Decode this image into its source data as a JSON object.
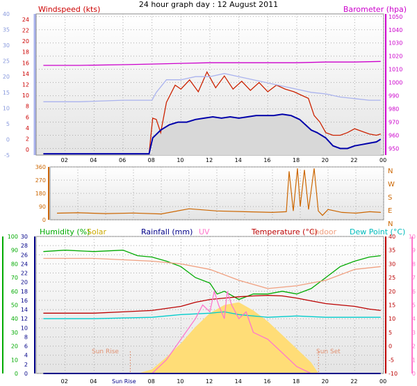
{
  "title": "24 hour graph day : 12 August 2011",
  "time_ticks": [
    "02",
    "04",
    "06",
    "08",
    "10",
    "12",
    "14",
    "16",
    "18",
    "20",
    "22",
    "00"
  ],
  "chart_data": [
    {
      "type": "line",
      "name": "wind-baro",
      "labels": {
        "windspeed": "Windspeed (kts)",
        "barometer": "Barometer (hpa)"
      },
      "y_left": {
        "range": [
          -1,
          25
        ],
        "ticks": [
          "0",
          "2",
          "4",
          "6",
          "8",
          "10",
          "12",
          "14",
          "16",
          "18",
          "20",
          "22",
          "24"
        ]
      },
      "y_left_outer": {
        "range": [
          -5,
          40
        ],
        "ticks": [
          "-5",
          "0",
          "5",
          "10",
          "15",
          "20",
          "25",
          "30",
          "35",
          "40"
        ]
      },
      "y_right": {
        "range": [
          945,
          1052
        ],
        "ticks": [
          "950",
          "960",
          "970",
          "980",
          "990",
          "1000",
          "1010",
          "1020",
          "1030",
          "1040",
          "1050"
        ]
      },
      "x_hours": [
        0,
        24
      ],
      "series": [
        {
          "key": "barometer",
          "axis": "right",
          "color": "#cc00cc",
          "points": [
            [
              0.5,
              1013
            ],
            [
              3,
              1013
            ],
            [
              6,
              1013.5
            ],
            [
              8,
              1014
            ],
            [
              10,
              1014.5
            ],
            [
              12,
              1015
            ],
            [
              14,
              1015
            ],
            [
              16,
              1015
            ],
            [
              18,
              1015
            ],
            [
              20,
              1015.5
            ],
            [
              22,
              1015.5
            ],
            [
              23.8,
              1016
            ]
          ]
        },
        {
          "key": "wind_gust",
          "axis": "right",
          "color": "#cc2200",
          "points": [
            [
              0.5,
              946
            ],
            [
              7.8,
              946
            ],
            [
              8.05,
              973
            ],
            [
              8.3,
              972
            ],
            [
              8.6,
              962
            ],
            [
              9,
              985
            ],
            [
              9.6,
              998
            ],
            [
              10,
              995
            ],
            [
              10.6,
              1002
            ],
            [
              11.2,
              993
            ],
            [
              11.8,
              1008
            ],
            [
              12.4,
              996
            ],
            [
              13,
              1005
            ],
            [
              13.6,
              995
            ],
            [
              14.2,
              1001
            ],
            [
              14.8,
              994
            ],
            [
              15.4,
              1000
            ],
            [
              16,
              993
            ],
            [
              16.6,
              998
            ],
            [
              17.2,
              995
            ],
            [
              17.8,
              993
            ],
            [
              18.4,
              990
            ],
            [
              18.8,
              988
            ],
            [
              19.2,
              975
            ],
            [
              19.6,
              970
            ],
            [
              20,
              962
            ],
            [
              20.5,
              960
            ],
            [
              21,
              960
            ],
            [
              21.5,
              962
            ],
            [
              22,
              965
            ],
            [
              22.5,
              963
            ],
            [
              23,
              961
            ],
            [
              23.5,
              960
            ],
            [
              23.8,
              961
            ]
          ]
        },
        {
          "key": "wind_avg",
          "axis": "right",
          "color": "#0000aa",
          "points": [
            [
              0.5,
              946
            ],
            [
              7.8,
              946
            ],
            [
              8.05,
              958
            ],
            [
              8.6,
              964
            ],
            [
              9.2,
              968
            ],
            [
              9.8,
              970
            ],
            [
              10.4,
              970
            ],
            [
              11,
              972
            ],
            [
              11.6,
              973
            ],
            [
              12.2,
              974
            ],
            [
              12.8,
              973
            ],
            [
              13.4,
              974
            ],
            [
              14,
              973
            ],
            [
              14.6,
              974
            ],
            [
              15.2,
              975
            ],
            [
              15.8,
              975
            ],
            [
              16.4,
              975
            ],
            [
              17,
              976
            ],
            [
              17.6,
              975
            ],
            [
              18.2,
              972
            ],
            [
              18.6,
              968
            ],
            [
              19,
              964
            ],
            [
              19.4,
              962
            ],
            [
              20,
              958
            ],
            [
              20.5,
              952
            ],
            [
              21,
              950
            ],
            [
              21.5,
              950
            ],
            [
              22,
              952
            ],
            [
              22.5,
              953
            ],
            [
              23,
              954
            ],
            [
              23.5,
              955
            ],
            [
              23.8,
              957
            ]
          ]
        },
        {
          "key": "outer_light",
          "axis": "left_outer",
          "color": "#aab3ee",
          "points": [
            [
              0.5,
              12
            ],
            [
              3,
              12
            ],
            [
              6,
              12.5
            ],
            [
              8,
              12.5
            ],
            [
              8.3,
              15
            ],
            [
              9,
              19
            ],
            [
              10,
              19
            ],
            [
              11,
              20
            ],
            [
              12,
              20
            ],
            [
              13,
              21
            ],
            [
              14,
              20
            ],
            [
              15,
              19
            ],
            [
              16,
              18
            ],
            [
              17,
              17
            ],
            [
              18,
              16
            ],
            [
              19,
              15
            ],
            [
              20,
              14.5
            ],
            [
              21,
              13.5
            ],
            [
              22,
              13
            ],
            [
              23,
              12.5
            ],
            [
              23.8,
              12.5
            ]
          ]
        }
      ],
      "fill_color": "#d8d8d8"
    },
    {
      "type": "line",
      "name": "wind-direction",
      "y_left": {
        "range": [
          0,
          360
        ],
        "ticks": [
          "0",
          "90",
          "180",
          "270",
          "360"
        ]
      },
      "y_right_labels": [
        "N",
        "W",
        "S",
        "E",
        "N"
      ],
      "series": [
        {
          "key": "direction",
          "color": "#cc6600",
          "points": [
            [
              0.5,
              45
            ],
            [
              2,
              48
            ],
            [
              4,
              42
            ],
            [
              6,
              46
            ],
            [
              8,
              40
            ],
            [
              10,
              75
            ],
            [
              12,
              60
            ],
            [
              14,
              55
            ],
            [
              16,
              50
            ],
            [
              17,
              55
            ],
            [
              17.2,
              330
            ],
            [
              17.5,
              60
            ],
            [
              17.8,
              350
            ],
            [
              18,
              90
            ],
            [
              18.3,
              340
            ],
            [
              18.6,
              70
            ],
            [
              19,
              350
            ],
            [
              19.3,
              60
            ],
            [
              19.6,
              30
            ],
            [
              20,
              70
            ],
            [
              21,
              50
            ],
            [
              22,
              45
            ],
            [
              23,
              55
            ],
            [
              23.8,
              50
            ]
          ]
        }
      ]
    },
    {
      "type": "line",
      "name": "humidity-temp-rain",
      "labels": {
        "humidity": "Humidity (%)",
        "solar": "Solar",
        "rainfall": "Rainfall (mm)",
        "uv": "UV",
        "temperature": "Temperature (°C)",
        "indoor": "Indoor",
        "dewpoint": "Dew Point (°C)"
      },
      "y_humidity": {
        "range": [
          0,
          100
        ],
        "ticks": [
          "0",
          "10",
          "20",
          "30",
          "40",
          "50",
          "60",
          "70",
          "80",
          "90",
          "100"
        ]
      },
      "y_rain": {
        "range": [
          0,
          30
        ],
        "ticks": [
          "0",
          "2",
          "4",
          "6",
          "8",
          "10",
          "12",
          "14",
          "16",
          "18",
          "20",
          "22",
          "24",
          "26",
          "28",
          "30"
        ]
      },
      "y_temp": {
        "range": [
          -10,
          40
        ],
        "ticks": [
          "-10",
          "-5",
          "0",
          "5",
          "10",
          "15",
          "20",
          "25",
          "30",
          "35",
          "40"
        ]
      },
      "y_uv": {
        "range": [
          0,
          10
        ],
        "ticks": [
          "0",
          "1",
          "2",
          "3",
          "4",
          "5",
          "6",
          "7",
          "8",
          "9",
          "10"
        ]
      },
      "annotations": {
        "sunrise": "Sun Rise",
        "sunset": "Sun Set",
        "sunrise_axis": "Sun Rise"
      },
      "series": [
        {
          "key": "humidity",
          "axis": "humidity",
          "color": "#00aa00",
          "points": [
            [
              0.5,
              89
            ],
            [
              2,
              90
            ],
            [
              4,
              89
            ],
            [
              6,
              90
            ],
            [
              7,
              86
            ],
            [
              8,
              85
            ],
            [
              9,
              82
            ],
            [
              10,
              78
            ],
            [
              11,
              70
            ],
            [
              12,
              66
            ],
            [
              12.5,
              58
            ],
            [
              13,
              60
            ],
            [
              14,
              54
            ],
            [
              15,
              58
            ],
            [
              16,
              58
            ],
            [
              17,
              60
            ],
            [
              18,
              58
            ],
            [
              19,
              62
            ],
            [
              20,
              70
            ],
            [
              21,
              78
            ],
            [
              22,
              82
            ],
            [
              23,
              85
            ],
            [
              23.8,
              86
            ]
          ]
        },
        {
          "key": "indoor",
          "axis": "temp",
          "color": "#f0a080",
          "points": [
            [
              0.5,
              32
            ],
            [
              4,
              32
            ],
            [
              6,
              31.5
            ],
            [
              8,
              31
            ],
            [
              10,
              30
            ],
            [
              12,
              28
            ],
            [
              14,
              24
            ],
            [
              16,
              21
            ],
            [
              18,
              22
            ],
            [
              20,
              24
            ],
            [
              22,
              28
            ],
            [
              23.8,
              29
            ]
          ]
        },
        {
          "key": "temperature",
          "axis": "temp",
          "color": "#bb0000",
          "points": [
            [
              0.5,
              12
            ],
            [
              4,
              12
            ],
            [
              6,
              12.5
            ],
            [
              8,
              13
            ],
            [
              10,
              14.5
            ],
            [
              11,
              16
            ],
            [
              12,
              17
            ],
            [
              13,
              17.5
            ],
            [
              14,
              18
            ],
            [
              15,
              18.3
            ],
            [
              16,
              18.5
            ],
            [
              17,
              18.3
            ],
            [
              18,
              17.5
            ],
            [
              19,
              16.5
            ],
            [
              20,
              15.5
            ],
            [
              21,
              15
            ],
            [
              22,
              14.5
            ],
            [
              23,
              13.5
            ],
            [
              23.8,
              13
            ]
          ]
        },
        {
          "key": "dewpoint",
          "axis": "temp",
          "color": "#00cccc",
          "points": [
            [
              0.5,
              10
            ],
            [
              4,
              10
            ],
            [
              8,
              10.5
            ],
            [
              10,
              11.5
            ],
            [
              12,
              12
            ],
            [
              13,
              12.5
            ],
            [
              14,
              11.5
            ],
            [
              15,
              11
            ],
            [
              16,
              10.5
            ],
            [
              18,
              11
            ],
            [
              20,
              10.5
            ],
            [
              22,
              10.5
            ],
            [
              23.8,
              10.5
            ]
          ]
        },
        {
          "key": "uv",
          "axis": "uv",
          "color": "#ff77cc",
          "points": [
            [
              8,
              0
            ],
            [
              9,
              1
            ],
            [
              10,
              2.5
            ],
            [
              11,
              4
            ],
            [
              11.5,
              5
            ],
            [
              12,
              4.5
            ],
            [
              12.3,
              6
            ],
            [
              12.6,
              5
            ],
            [
              13,
              4
            ],
            [
              13.2,
              6
            ],
            [
              13.5,
              5
            ],
            [
              14,
              4
            ],
            [
              14.5,
              4.5
            ],
            [
              15,
              3
            ],
            [
              16,
              2.5
            ],
            [
              17,
              1.5
            ],
            [
              18,
              0.5
            ],
            [
              19,
              0
            ]
          ]
        },
        {
          "key": "rainfall",
          "axis": "rain",
          "color": "#000088",
          "points": [
            [
              0.5,
              0
            ],
            [
              23.8,
              0
            ]
          ]
        }
      ],
      "solar": {
        "color": "#ffdd77",
        "points": [
          [
            7,
            0
          ],
          [
            8,
            3
          ],
          [
            9,
            12
          ],
          [
            10,
            22
          ],
          [
            11,
            34
          ],
          [
            12,
            44
          ],
          [
            13,
            50
          ],
          [
            14,
            52
          ],
          [
            15,
            46
          ],
          [
            16,
            38
          ],
          [
            17,
            28
          ],
          [
            18,
            18
          ],
          [
            19,
            8
          ],
          [
            19.5,
            0
          ]
        ]
      }
    }
  ]
}
